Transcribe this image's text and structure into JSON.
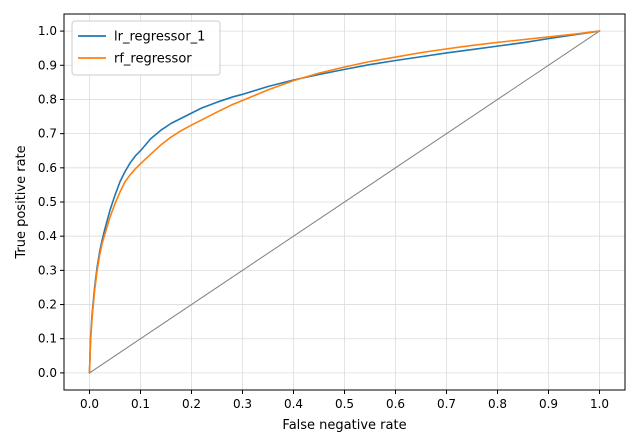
{
  "chart_data": {
    "type": "line",
    "title": "",
    "xlabel": "False negative rate",
    "ylabel": "True positive rate",
    "xlim": [
      -0.05,
      1.05
    ],
    "ylim": [
      -0.05,
      1.05
    ],
    "xticks": [
      0.0,
      0.1,
      0.2,
      0.3,
      0.4,
      0.5,
      0.6,
      0.7,
      0.8,
      0.9,
      1.0
    ],
    "yticks": [
      0.0,
      0.1,
      0.2,
      0.3,
      0.4,
      0.5,
      0.6,
      0.7,
      0.8,
      0.9,
      1.0
    ],
    "xtick_labels": [
      "0.0",
      "0.1",
      "0.2",
      "0.3",
      "0.4",
      "0.5",
      "0.6",
      "0.7",
      "0.8",
      "0.9",
      "1.0"
    ],
    "ytick_labels": [
      "0.0",
      "0.1",
      "0.2",
      "0.3",
      "0.4",
      "0.5",
      "0.6",
      "0.7",
      "0.8",
      "0.9",
      "1.0"
    ],
    "grid": true,
    "legend": {
      "position": "top-left"
    },
    "reference_line": {
      "x": [
        0.0,
        1.0
      ],
      "y": [
        0.0,
        1.0
      ],
      "color": "#808080"
    },
    "series": [
      {
        "name": "lr_regressor_1",
        "color": "#1f77b4",
        "x": [
          0.0,
          0.002,
          0.005,
          0.01,
          0.015,
          0.02,
          0.025,
          0.03,
          0.04,
          0.05,
          0.06,
          0.07,
          0.08,
          0.09,
          0.1,
          0.12,
          0.14,
          0.16,
          0.18,
          0.2,
          0.22,
          0.25,
          0.28,
          0.3,
          0.35,
          0.4,
          0.45,
          0.5,
          0.55,
          0.6,
          0.65,
          0.7,
          0.75,
          0.8,
          0.85,
          0.9,
          0.95,
          1.0
        ],
        "y": [
          0.0,
          0.1,
          0.17,
          0.25,
          0.31,
          0.355,
          0.39,
          0.42,
          0.475,
          0.52,
          0.56,
          0.59,
          0.615,
          0.635,
          0.65,
          0.685,
          0.71,
          0.73,
          0.745,
          0.76,
          0.775,
          0.792,
          0.807,
          0.815,
          0.838,
          0.857,
          0.873,
          0.888,
          0.902,
          0.914,
          0.925,
          0.936,
          0.946,
          0.956,
          0.966,
          0.978,
          0.989,
          1.0
        ]
      },
      {
        "name": "rf_regressor",
        "color": "#ff7f0e",
        "x": [
          0.0,
          0.002,
          0.005,
          0.01,
          0.015,
          0.02,
          0.025,
          0.03,
          0.04,
          0.05,
          0.06,
          0.07,
          0.08,
          0.09,
          0.1,
          0.12,
          0.14,
          0.16,
          0.18,
          0.2,
          0.22,
          0.25,
          0.28,
          0.3,
          0.35,
          0.4,
          0.45,
          0.5,
          0.55,
          0.6,
          0.65,
          0.7,
          0.75,
          0.8,
          0.85,
          0.9,
          0.95,
          1.0
        ],
        "y": [
          0.0,
          0.09,
          0.16,
          0.24,
          0.3,
          0.345,
          0.38,
          0.405,
          0.455,
          0.495,
          0.53,
          0.56,
          0.58,
          0.597,
          0.612,
          0.64,
          0.667,
          0.69,
          0.709,
          0.725,
          0.74,
          0.763,
          0.785,
          0.797,
          0.828,
          0.855,
          0.877,
          0.895,
          0.911,
          0.924,
          0.937,
          0.948,
          0.958,
          0.967,
          0.975,
          0.983,
          0.991,
          1.0
        ]
      }
    ]
  }
}
